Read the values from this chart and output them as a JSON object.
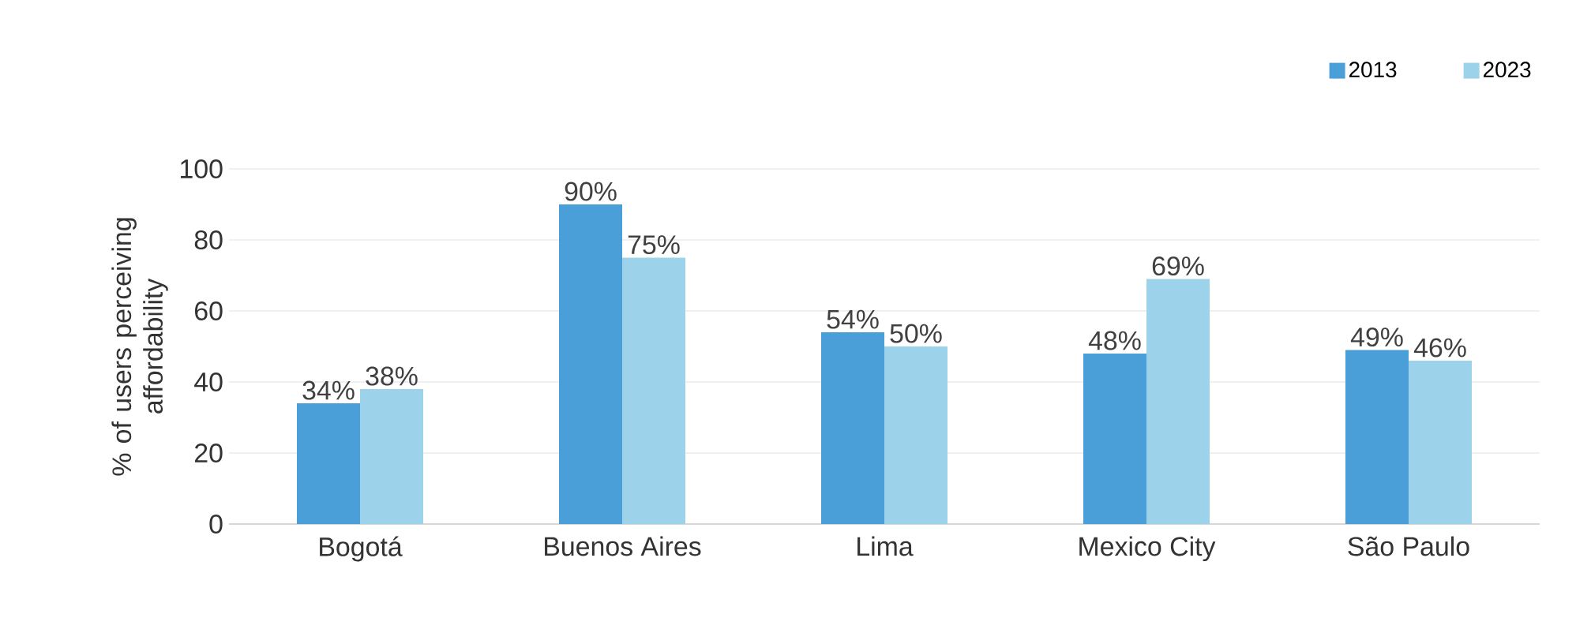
{
  "chart_data": {
    "type": "bar",
    "ylabel": "% of users perceiving affordability",
    "categories": [
      "Bogotá",
      "Buenos Aires",
      "Lima",
      "Mexico City",
      "São Paulo"
    ],
    "series": [
      {
        "name": "2013",
        "color": "#4a9fd8",
        "values": [
          34,
          90,
          54,
          48,
          49
        ],
        "value_labels": [
          "34%",
          "90%",
          "54%",
          "48%",
          "49%"
        ]
      },
      {
        "name": "2023",
        "color": "#9dd3ea",
        "values": [
          38,
          75,
          50,
          69,
          46
        ],
        "value_labels": [
          "38%",
          "75%",
          "50%",
          "69%",
          "46%"
        ]
      }
    ],
    "ylim": [
      0,
      100
    ],
    "yticks": [
      0,
      20,
      40,
      60,
      80,
      100
    ],
    "grid": "y",
    "legend": "top right"
  }
}
